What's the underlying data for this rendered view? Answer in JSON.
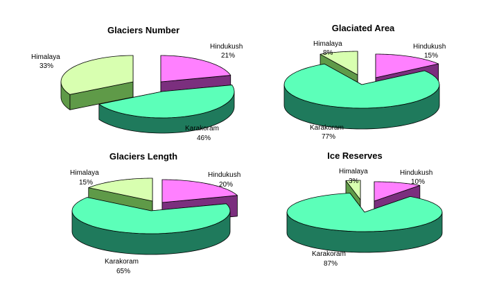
{
  "chart_data": [
    {
      "type": "pie",
      "title": "Glaciers Number",
      "categories": [
        "Hindukush",
        "Karakoram",
        "Himalaya"
      ],
      "values": [
        21,
        46,
        33
      ],
      "labels": [
        "Hindukush 21%",
        "Karakoram 46%",
        "Himalaya 33%"
      ],
      "legend": "none",
      "style": "3d-exploded"
    },
    {
      "type": "pie",
      "title": "Glaciated Area",
      "categories": [
        "Hindukush",
        "Karakoram",
        "Himalaya"
      ],
      "values": [
        15,
        77,
        8
      ],
      "labels": [
        "Hindukush 15%",
        "Karakoram 77%",
        "Himalaya 8%"
      ],
      "legend": "none",
      "style": "3d-exploded"
    },
    {
      "type": "pie",
      "title": "Glaciers Length",
      "categories": [
        "Hindukush",
        "Karakoram",
        "Himalaya"
      ],
      "values": [
        20,
        65,
        15
      ],
      "labels": [
        "Hindukush 20%",
        "Karakoram 65%",
        "Himalaya 15%"
      ],
      "legend": "none",
      "style": "3d-exploded"
    },
    {
      "type": "pie",
      "title": "Ice Reserves",
      "categories": [
        "Hindukush",
        "Karakoram",
        "Himalaya"
      ],
      "values": [
        10,
        87,
        3
      ],
      "labels": [
        "Hindukush 10%",
        "Karakoram 87%",
        "Himalaya 3%"
      ],
      "legend": "none",
      "style": "3d-exploded"
    }
  ],
  "colors": {
    "Hindukush": {
      "top": "#ff80ff",
      "side": "#7b2f7e"
    },
    "Karakoram": {
      "top": "#5cffb9",
      "side": "#1f7a5c"
    },
    "Himalaya": {
      "top": "#d8ffb0",
      "side": "#5f9a48"
    }
  },
  "panels": [
    {
      "title": "Glaciers Number",
      "labels": {
        "Hindukush": {
          "name": "Hindukush",
          "pct": "21%"
        },
        "Karakoram": {
          "name": "Karakoram",
          "pct": "46%"
        },
        "Himalaya": {
          "name": "Himalaya",
          "pct": "33%"
        }
      }
    },
    {
      "title": "Glaciated Area",
      "labels": {
        "Hindukush": {
          "name": "Hindukush",
          "pct": "15%"
        },
        "Karakoram": {
          "name": "Karakoram",
          "pct": "77%"
        },
        "Himalaya": {
          "name": "Himalaya",
          "pct": "8%"
        }
      }
    },
    {
      "title": "Glaciers Length",
      "labels": {
        "Hindukush": {
          "name": "Hindukush",
          "pct": "20%"
        },
        "Karakoram": {
          "name": "Karakoram",
          "pct": "65%"
        },
        "Himalaya": {
          "name": "Himalaya",
          "pct": "15%"
        }
      }
    },
    {
      "title": "Ice Reserves",
      "labels": {
        "Hindukush": {
          "name": "Hindukush",
          "pct": "10%"
        },
        "Karakoram": {
          "name": "Karakoram",
          "pct": "87%"
        },
        "Himalaya": {
          "name": "Himalaya",
          "pct": "3%"
        }
      }
    }
  ]
}
